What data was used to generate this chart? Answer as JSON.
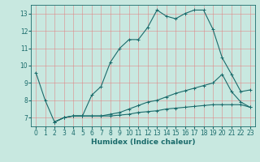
{
  "title": "",
  "xlabel": "Humidex (Indice chaleur)",
  "ylabel": "",
  "background_color": "#c8e8e0",
  "grid_color": "#e08080",
  "line_color": "#1a6b6b",
  "xlim": [
    -0.5,
    23.5
  ],
  "ylim": [
    6.5,
    13.5
  ],
  "xticks": [
    0,
    1,
    2,
    3,
    4,
    5,
    6,
    7,
    8,
    9,
    10,
    11,
    12,
    13,
    14,
    15,
    16,
    17,
    18,
    19,
    20,
    21,
    22,
    23
  ],
  "yticks": [
    7,
    8,
    9,
    10,
    11,
    12,
    13
  ],
  "line1_x": [
    0,
    1,
    2,
    3,
    4,
    5,
    6,
    7,
    8,
    9,
    10,
    11,
    12,
    13,
    14,
    15,
    16,
    17,
    18,
    19,
    20,
    21,
    22,
    23
  ],
  "line1_y": [
    9.6,
    8.0,
    6.75,
    7.0,
    7.1,
    7.1,
    8.3,
    8.8,
    10.2,
    11.0,
    11.5,
    11.5,
    12.2,
    13.2,
    12.85,
    12.7,
    13.0,
    13.2,
    13.2,
    12.1,
    10.45,
    9.5,
    8.5,
    8.6
  ],
  "line2_x": [
    2,
    3,
    4,
    5,
    6,
    7,
    8,
    9,
    10,
    11,
    12,
    13,
    14,
    15,
    16,
    17,
    18,
    19,
    20,
    21,
    22,
    23
  ],
  "line2_y": [
    6.75,
    7.0,
    7.1,
    7.1,
    7.1,
    7.1,
    7.2,
    7.3,
    7.5,
    7.7,
    7.9,
    8.0,
    8.2,
    8.4,
    8.55,
    8.7,
    8.85,
    9.0,
    9.5,
    8.5,
    7.9,
    7.6
  ],
  "line3_x": [
    2,
    3,
    4,
    5,
    6,
    7,
    8,
    9,
    10,
    11,
    12,
    13,
    14,
    15,
    16,
    17,
    18,
    19,
    20,
    21,
    22,
    23
  ],
  "line3_y": [
    6.75,
    7.0,
    7.1,
    7.1,
    7.1,
    7.1,
    7.1,
    7.15,
    7.2,
    7.3,
    7.35,
    7.4,
    7.5,
    7.55,
    7.6,
    7.65,
    7.7,
    7.75,
    7.75,
    7.75,
    7.75,
    7.6
  ],
  "tick_fontsize": 5.5,
  "xlabel_fontsize": 6.5,
  "marker_size": 3.0,
  "linewidth": 0.8
}
